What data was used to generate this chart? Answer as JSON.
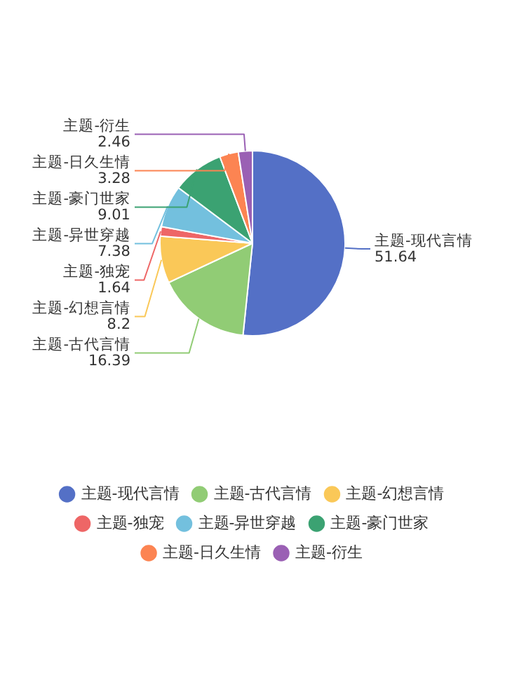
{
  "chart_data": {
    "type": "pie",
    "categories": [
      "主题-现代言情",
      "主题-古代言情",
      "主题-幻想言情",
      "主题-独宠",
      "主题-异世穿越",
      "主题-豪门世家",
      "主题-日久生情",
      "主题-衍生"
    ],
    "values": [
      51.64,
      16.39,
      8.2,
      1.64,
      7.38,
      9.01,
      3.28,
      2.46
    ],
    "colors": [
      "#5470c6",
      "#91cc75",
      "#fac858",
      "#ee6666",
      "#73c0de",
      "#3ba272",
      "#fc8452",
      "#9a60b4"
    ],
    "data_labels": true,
    "legend": "bottom"
  }
}
